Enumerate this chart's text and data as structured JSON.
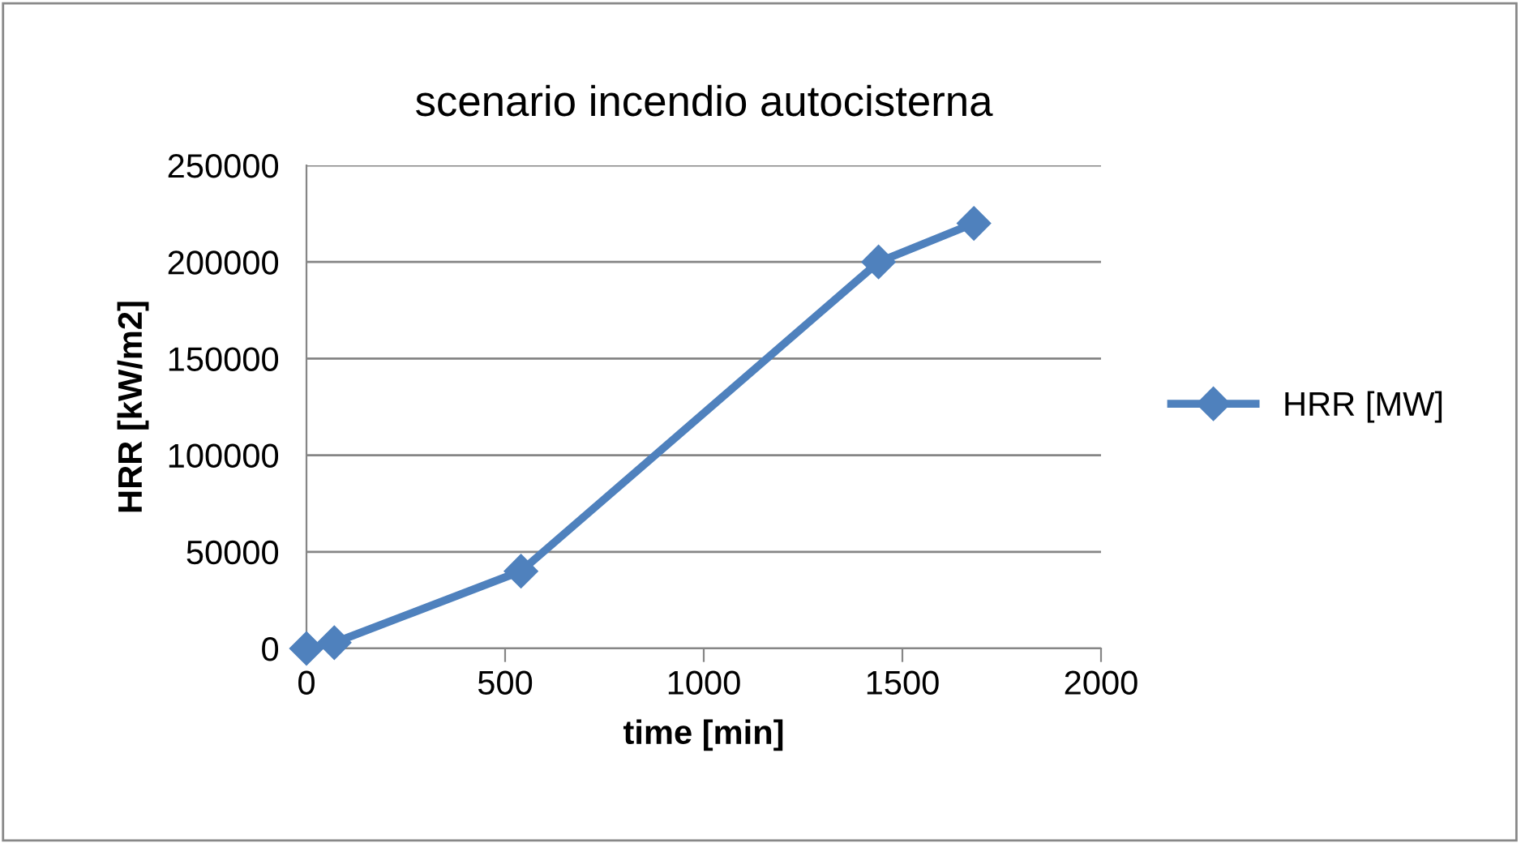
{
  "chart_data": {
    "type": "line",
    "title": "scenario incendio autocisterna",
    "xlabel": "time [min]",
    "ylabel": "HRR [kW/m2]",
    "x": [
      0,
      70,
      540,
      1440,
      1680
    ],
    "series": [
      {
        "name": "HRR [MW]",
        "color": "#4f81bd",
        "values": [
          0,
          3000,
          40000,
          200000,
          220000
        ]
      }
    ],
    "xlim": [
      0,
      2000
    ],
    "xticks": [
      0,
      500,
      1000,
      1500,
      2000
    ],
    "ylim": [
      0,
      250000
    ],
    "yticks": [
      0,
      50000,
      100000,
      150000,
      200000,
      250000
    ],
    "grid": "y",
    "legend": "right",
    "marker": "diamond",
    "line_style": "solid"
  }
}
